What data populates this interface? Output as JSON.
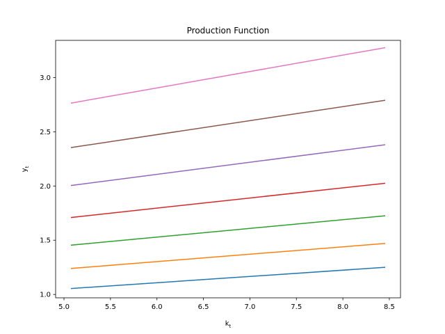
{
  "chart_data": {
    "type": "line",
    "title": "Production Function",
    "xlabel": "k",
    "xlabel_sub": "t",
    "ylabel": "y",
    "ylabel_sub": "t",
    "xlim": [
      4.91,
      8.62
    ],
    "ylim": [
      0.969,
      3.343
    ],
    "xticks": [
      5.0,
      5.5,
      6.0,
      6.5,
      7.0,
      7.5,
      8.0,
      8.5
    ],
    "xtick_labels": [
      "5.0",
      "5.5",
      "6.0",
      "6.5",
      "7.0",
      "7.5",
      "8.0",
      "8.5"
    ],
    "yticks": [
      1.0,
      1.5,
      2.0,
      2.5,
      3.0
    ],
    "ytick_labels": [
      "1.0",
      "1.5",
      "2.0",
      "2.5",
      "3.0"
    ],
    "grid": false,
    "legend": false,
    "series": [
      {
        "color": "#1f77b4",
        "x": [
          5.08,
          8.45
        ],
        "y": [
          1.055,
          1.25
        ]
      },
      {
        "color": "#ff7f0e",
        "x": [
          5.08,
          8.45
        ],
        "y": [
          1.24,
          1.47
        ]
      },
      {
        "color": "#2ca02c",
        "x": [
          5.08,
          8.45
        ],
        "y": [
          1.455,
          1.725
        ]
      },
      {
        "color": "#d62728",
        "x": [
          5.08,
          8.45
        ],
        "y": [
          1.71,
          2.025
        ]
      },
      {
        "color": "#9467bd",
        "x": [
          5.08,
          8.45
        ],
        "y": [
          2.005,
          2.38
        ]
      },
      {
        "color": "#8c564b",
        "x": [
          5.08,
          8.45
        ],
        "y": [
          2.355,
          2.79
        ]
      },
      {
        "color": "#e377c2",
        "x": [
          5.08,
          8.45
        ],
        "y": [
          2.765,
          3.275
        ]
      }
    ]
  }
}
